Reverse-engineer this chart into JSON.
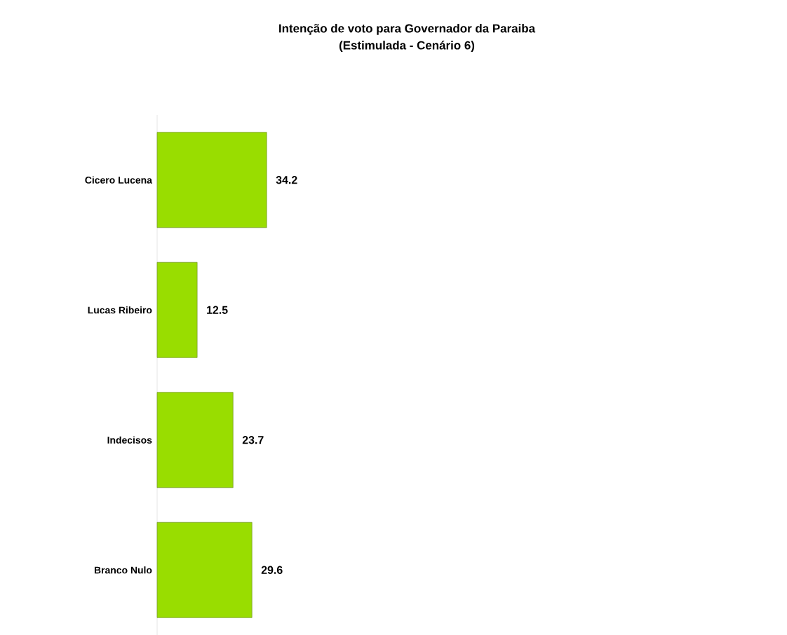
{
  "chart_data": {
    "type": "bar",
    "orientation": "horizontal",
    "title": "Intenção de voto para Governador da Paraiba",
    "subtitle": "(Estimulada - Cenário 6)",
    "categories": [
      "Cicero Lucena",
      "Lucas Ribeiro",
      "Indecisos",
      "Branco Nulo"
    ],
    "values": [
      34.2,
      12.5,
      23.7,
      29.6
    ],
    "color": "#99dd00",
    "data_labels": true
  }
}
